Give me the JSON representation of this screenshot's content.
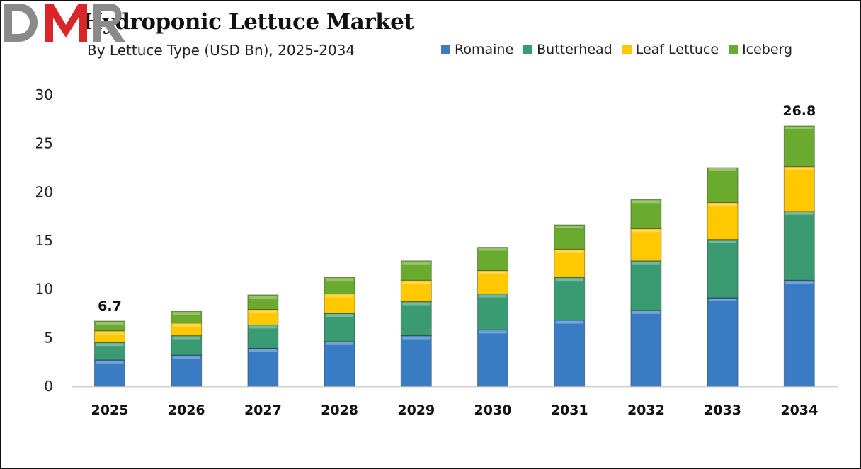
{
  "chart_data": {
    "type": "bar",
    "stacked": true,
    "title": "Hydroponic Lettuce Market",
    "subtitle": "By Lettuce Type (USD Bn), 2025-2034",
    "xlabel": "",
    "ylabel": "",
    "ylim": [
      0,
      30
    ],
    "yticks": [
      0,
      5,
      10,
      15,
      20,
      25,
      30
    ],
    "grid": false,
    "legend_position": "top-right",
    "categories": [
      "2025",
      "2026",
      "2027",
      "2028",
      "2029",
      "2030",
      "2031",
      "2032",
      "2033",
      "2034"
    ],
    "series": [
      {
        "name": "Romaine",
        "color": "#3a7cc4",
        "values": [
          2.7,
          3.2,
          3.9,
          4.6,
          5.2,
          5.8,
          6.8,
          7.8,
          9.1,
          10.9
        ]
      },
      {
        "name": "Butterhead",
        "color": "#3a9a72",
        "values": [
          1.8,
          2.0,
          2.4,
          2.9,
          3.5,
          3.7,
          4.4,
          5.1,
          6.0,
          7.1
        ]
      },
      {
        "name": "Leaf Lettuce",
        "color": "#ffc800",
        "values": [
          1.2,
          1.3,
          1.6,
          2.0,
          2.2,
          2.4,
          2.9,
          3.3,
          3.8,
          4.6
        ]
      },
      {
        "name": "Iceberg",
        "color": "#6aaa2e",
        "values": [
          1.0,
          1.2,
          1.5,
          1.7,
          2.0,
          2.4,
          2.5,
          3.0,
          3.6,
          4.2
        ]
      }
    ],
    "data_labels": [
      {
        "category": "2025",
        "text": "6.7"
      },
      {
        "category": "2034",
        "text": "26.8"
      }
    ]
  },
  "logo": {
    "text": "DMR",
    "colors": [
      "#888888",
      "#d9262b"
    ]
  }
}
